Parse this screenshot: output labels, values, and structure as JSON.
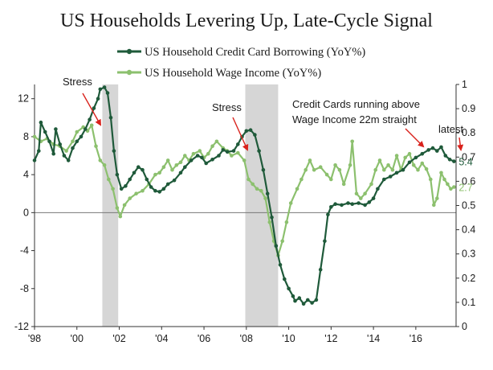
{
  "chart_data": {
    "type": "line",
    "title": "US Households Levering Up, Late-Cycle Signal",
    "x_tick_labels": [
      "'98",
      "'00",
      "'02",
      "'04",
      "'06",
      "'08",
      "'10",
      "'12",
      "'14",
      "'16"
    ],
    "x_tick_years": [
      1998,
      2000,
      2002,
      2004,
      2006,
      2008,
      2010,
      2012,
      2014,
      2016
    ],
    "xlim": [
      1998,
      2017.9
    ],
    "y_left": {
      "ticks": [
        12,
        8,
        4,
        0,
        -4,
        -8,
        -12
      ],
      "ylim": [
        -12,
        13.5
      ]
    },
    "y_right": {
      "ticks": [
        1,
        0.9,
        0.8,
        0.7,
        0.6,
        0.5,
        0.4,
        0.3,
        0.2,
        0.1,
        0
      ],
      "ylim": [
        0,
        1
      ]
    },
    "shaded_periods": [
      [
        2001.2,
        2001.95
      ],
      [
        2007.95,
        2009.5
      ]
    ],
    "zero_line": true,
    "series": [
      {
        "name": "US Household Credit Card Borrowing (YoY%)",
        "color": "#1f5a3a",
        "end_label": "5.4",
        "points": [
          [
            1998.0,
            5.5
          ],
          [
            1998.2,
            6.5
          ],
          [
            1998.3,
            9.5
          ],
          [
            1998.5,
            8.5
          ],
          [
            1998.7,
            7.5
          ],
          [
            1998.9,
            6.2
          ],
          [
            1999.0,
            8.8
          ],
          [
            1999.2,
            7.2
          ],
          [
            1999.4,
            6.0
          ],
          [
            1999.6,
            5.5
          ],
          [
            1999.8,
            6.8
          ],
          [
            2000.0,
            7.5
          ],
          [
            2000.2,
            8.0
          ],
          [
            2000.4,
            8.8
          ],
          [
            2000.6,
            9.8
          ],
          [
            2000.8,
            11.0
          ],
          [
            2001.0,
            12.0
          ],
          [
            2001.1,
            13.0
          ],
          [
            2001.3,
            13.2
          ],
          [
            2001.45,
            12.6
          ],
          [
            2001.6,
            10.0
          ],
          [
            2001.75,
            6.5
          ],
          [
            2001.9,
            4.0
          ],
          [
            2002.1,
            2.5
          ],
          [
            2002.3,
            2.8
          ],
          [
            2002.5,
            3.5
          ],
          [
            2002.7,
            4.2
          ],
          [
            2002.9,
            4.8
          ],
          [
            2003.1,
            4.5
          ],
          [
            2003.3,
            3.5
          ],
          [
            2003.5,
            2.7
          ],
          [
            2003.7,
            2.3
          ],
          [
            2003.9,
            2.2
          ],
          [
            2004.1,
            2.5
          ],
          [
            2004.3,
            3.0
          ],
          [
            2004.6,
            3.4
          ],
          [
            2004.9,
            4.2
          ],
          [
            2005.1,
            4.8
          ],
          [
            2005.4,
            5.5
          ],
          [
            2005.7,
            6.0
          ],
          [
            2005.9,
            5.8
          ],
          [
            2006.1,
            5.2
          ],
          [
            2006.4,
            5.6
          ],
          [
            2006.7,
            6.0
          ],
          [
            2006.9,
            6.6
          ],
          [
            2007.1,
            6.4
          ],
          [
            2007.4,
            6.5
          ],
          [
            2007.6,
            7.2
          ],
          [
            2007.8,
            8.0
          ],
          [
            2008.0,
            8.6
          ],
          [
            2008.2,
            8.7
          ],
          [
            2008.4,
            8.2
          ],
          [
            2008.6,
            6.5
          ],
          [
            2008.8,
            4.5
          ],
          [
            2009.0,
            2.0
          ],
          [
            2009.2,
            -0.5
          ],
          [
            2009.4,
            -3.5
          ],
          [
            2009.6,
            -5.5
          ],
          [
            2009.8,
            -7.0
          ],
          [
            2010.0,
            -8.0
          ],
          [
            2010.2,
            -8.8
          ],
          [
            2010.3,
            -9.3
          ],
          [
            2010.5,
            -9.0
          ],
          [
            2010.7,
            -9.6
          ],
          [
            2010.9,
            -9.2
          ],
          [
            2011.1,
            -9.5
          ],
          [
            2011.3,
            -9.2
          ],
          [
            2011.5,
            -6.0
          ],
          [
            2011.7,
            -3.0
          ],
          [
            2011.85,
            -0.2
          ],
          [
            2012.0,
            0.6
          ],
          [
            2012.2,
            0.9
          ],
          [
            2012.5,
            0.8
          ],
          [
            2012.8,
            1.0
          ],
          [
            2013.0,
            0.9
          ],
          [
            2013.3,
            1.0
          ],
          [
            2013.6,
            0.8
          ],
          [
            2013.8,
            1.1
          ],
          [
            2014.0,
            1.5
          ],
          [
            2014.2,
            2.5
          ],
          [
            2014.5,
            3.5
          ],
          [
            2014.8,
            3.8
          ],
          [
            2015.1,
            4.2
          ],
          [
            2015.4,
            4.5
          ],
          [
            2015.7,
            5.3
          ],
          [
            2016.0,
            5.8
          ],
          [
            2016.3,
            6.2
          ],
          [
            2016.6,
            6.6
          ],
          [
            2016.8,
            6.8
          ],
          [
            2017.0,
            6.5
          ],
          [
            2017.2,
            6.9
          ],
          [
            2017.4,
            6.0
          ],
          [
            2017.6,
            5.6
          ],
          [
            2017.8,
            5.4
          ]
        ]
      },
      {
        "name": "US Household Wage Income (YoY%)",
        "color": "#8cc06e",
        "end_label": "2.7",
        "points": [
          [
            1998.0,
            8.0
          ],
          [
            1998.3,
            7.5
          ],
          [
            1998.6,
            7.8
          ],
          [
            1998.9,
            7.2
          ],
          [
            1999.2,
            7.0
          ],
          [
            1999.5,
            6.5
          ],
          [
            1999.8,
            7.5
          ],
          [
            2000.0,
            8.5
          ],
          [
            2000.3,
            9.0
          ],
          [
            2000.5,
            8.6
          ],
          [
            2000.7,
            9.2
          ],
          [
            2000.9,
            7.0
          ],
          [
            2001.1,
            5.5
          ],
          [
            2001.3,
            5.0
          ],
          [
            2001.5,
            3.5
          ],
          [
            2001.7,
            2.5
          ],
          [
            2001.9,
            0.5
          ],
          [
            2002.05,
            -0.4
          ],
          [
            2002.25,
            0.8
          ],
          [
            2002.5,
            1.5
          ],
          [
            2002.8,
            2.0
          ],
          [
            2003.1,
            2.3
          ],
          [
            2003.4,
            3.0
          ],
          [
            2003.7,
            4.0
          ],
          [
            2003.9,
            4.2
          ],
          [
            2004.1,
            4.8
          ],
          [
            2004.3,
            5.5
          ],
          [
            2004.5,
            4.5
          ],
          [
            2004.7,
            5.0
          ],
          [
            2004.9,
            5.3
          ],
          [
            2005.1,
            6.0
          ],
          [
            2005.3,
            5.5
          ],
          [
            2005.5,
            6.2
          ],
          [
            2005.8,
            6.5
          ],
          [
            2006.0,
            5.8
          ],
          [
            2006.2,
            6.2
          ],
          [
            2006.4,
            7.0
          ],
          [
            2006.6,
            7.5
          ],
          [
            2006.9,
            6.8
          ],
          [
            2007.1,
            6.5
          ],
          [
            2007.3,
            6.0
          ],
          [
            2007.6,
            6.3
          ],
          [
            2007.9,
            5.5
          ],
          [
            2008.1,
            3.5
          ],
          [
            2008.3,
            3.0
          ],
          [
            2008.5,
            2.5
          ],
          [
            2008.7,
            2.3
          ],
          [
            2008.9,
            1.5
          ],
          [
            2009.1,
            -1.0
          ],
          [
            2009.3,
            -3.0
          ],
          [
            2009.5,
            -4.5
          ],
          [
            2009.7,
            -3.0
          ],
          [
            2009.9,
            -1.0
          ],
          [
            2010.1,
            1.0
          ],
          [
            2010.4,
            2.5
          ],
          [
            2010.6,
            3.5
          ],
          [
            2010.8,
            4.5
          ],
          [
            2011.0,
            5.5
          ],
          [
            2011.2,
            4.5
          ],
          [
            2011.5,
            4.8
          ],
          [
            2011.8,
            4.0
          ],
          [
            2012.0,
            3.5
          ],
          [
            2012.2,
            5.0
          ],
          [
            2012.4,
            4.5
          ],
          [
            2012.6,
            3.0
          ],
          [
            2012.9,
            5.0
          ],
          [
            2013.0,
            7.5
          ],
          [
            2013.2,
            2.0
          ],
          [
            2013.4,
            1.5
          ],
          [
            2013.6,
            2.0
          ],
          [
            2013.9,
            3.0
          ],
          [
            2014.1,
            4.5
          ],
          [
            2014.3,
            5.5
          ],
          [
            2014.5,
            4.5
          ],
          [
            2014.7,
            5.0
          ],
          [
            2014.9,
            4.5
          ],
          [
            2015.1,
            6.0
          ],
          [
            2015.3,
            4.5
          ],
          [
            2015.5,
            5.8
          ],
          [
            2015.7,
            6.2
          ],
          [
            2015.9,
            5.0
          ],
          [
            2016.1,
            4.5
          ],
          [
            2016.3,
            5.2
          ],
          [
            2016.5,
            4.6
          ],
          [
            2016.7,
            3.5
          ],
          [
            2016.85,
            0.8
          ],
          [
            2017.0,
            1.5
          ],
          [
            2017.2,
            4.2
          ],
          [
            2017.35,
            3.5
          ],
          [
            2017.5,
            3.0
          ],
          [
            2017.65,
            2.5
          ],
          [
            2017.8,
            2.7
          ]
        ]
      }
    ],
    "annotations": [
      {
        "id": "stress-1",
        "text": "Stress",
        "point_at": [
          2001.0,
          9.0
        ]
      },
      {
        "id": "stress-2",
        "text": "Stress",
        "point_at": [
          2008.0,
          6.3
        ]
      },
      {
        "id": "cards-note",
        "lines": [
          "Credit Cards running above",
          "Wage Income 22m straight"
        ],
        "point_at": [
          2017.2,
          6.6
        ]
      },
      {
        "id": "latest-note",
        "text": "latest",
        "point_at": [
          2017.85,
          6.8
        ]
      }
    ]
  }
}
